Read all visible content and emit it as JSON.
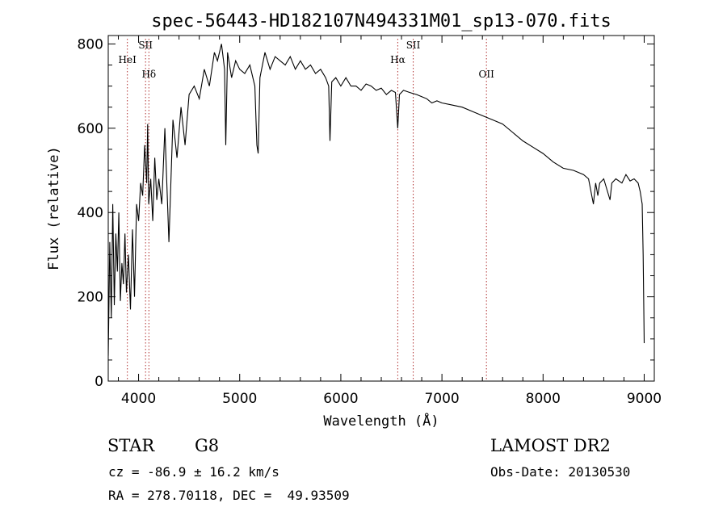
{
  "chart_data": {
    "type": "line",
    "title": "spec-56443-HD182107N494331M01_sp13-070.fits",
    "xlabel": "Wavelength (Å)",
    "ylabel": "Flux (relative)",
    "xlim": [
      3700,
      9100
    ],
    "ylim": [
      0,
      820
    ],
    "x_ticks": [
      4000,
      5000,
      6000,
      7000,
      8000,
      9000
    ],
    "y_ticks": [
      0,
      200,
      400,
      600,
      800
    ],
    "grid": false,
    "series": [
      {
        "x": [
          3700,
          3715,
          3730,
          3745,
          3760,
          3775,
          3790,
          3805,
          3820,
          3835,
          3850,
          3865,
          3880,
          3900,
          3920,
          3940,
          3960,
          3980,
          4000,
          4020,
          4040,
          4060,
          4080,
          4090,
          4100,
          4120,
          4140,
          4160,
          4180,
          4200,
          4230,
          4260,
          4300,
          4340,
          4380,
          4420,
          4460,
          4500,
          4550,
          4600,
          4650,
          4700,
          4750,
          4780,
          4820,
          4850,
          4862,
          4880,
          4920,
          4960,
          5000,
          5050,
          5100,
          5150,
          5170,
          5183,
          5200,
          5250,
          5300,
          5350,
          5400,
          5450,
          5500,
          5550,
          5600,
          5650,
          5700,
          5750,
          5800,
          5850,
          5880,
          5893,
          5910,
          5950,
          6000,
          6050,
          6100,
          6150,
          6200,
          6250,
          6300,
          6350,
          6400,
          6450,
          6500,
          6540,
          6563,
          6580,
          6620,
          6680,
          6750,
          6800,
          6850,
          6900,
          6950,
          7000,
          7100,
          7200,
          7300,
          7400,
          7500,
          7600,
          7700,
          7800,
          7900,
          8000,
          8100,
          8200,
          8300,
          8400,
          8450,
          8498,
          8520,
          8542,
          8560,
          8600,
          8662,
          8680,
          8720,
          8780,
          8820,
          8860,
          8900,
          8940,
          8960,
          8980,
          8990,
          9000
        ],
        "y": [
          60,
          330,
          150,
          420,
          180,
          350,
          260,
          400,
          190,
          280,
          230,
          350,
          210,
          300,
          170,
          360,
          200,
          420,
          380,
          470,
          440,
          560,
          470,
          610,
          420,
          480,
          380,
          530,
          430,
          480,
          420,
          600,
          330,
          620,
          530,
          650,
          560,
          680,
          700,
          670,
          740,
          700,
          780,
          760,
          800,
          740,
          560,
          780,
          720,
          760,
          740,
          730,
          750,
          700,
          560,
          540,
          720,
          780,
          740,
          770,
          760,
          750,
          770,
          740,
          760,
          740,
          750,
          730,
          740,
          720,
          700,
          570,
          710,
          720,
          700,
          720,
          700,
          700,
          690,
          705,
          700,
          690,
          695,
          680,
          690,
          685,
          600,
          680,
          690,
          685,
          680,
          675,
          670,
          660,
          665,
          660,
          655,
          650,
          640,
          630,
          620,
          610,
          590,
          570,
          555,
          540,
          520,
          505,
          500,
          490,
          480,
          420,
          470,
          440,
          470,
          480,
          430,
          470,
          480,
          470,
          490,
          475,
          480,
          470,
          450,
          420,
          300,
          90
        ],
        "linestyle": "solid",
        "color": "#000000"
      }
    ],
    "annotations": [
      {
        "label": "HeI",
        "x": 3889,
        "label_row": 1
      },
      {
        "label": "SII",
        "x": 4069,
        "label_row": 0
      },
      {
        "label": "Hδ",
        "x": 4102,
        "label_row": 2
      },
      {
        "label": "Hα",
        "x": 6563,
        "label_row": 1
      },
      {
        "label": "SII",
        "x": 6716,
        "label_row": 0
      },
      {
        "label": "OII",
        "x": 7440,
        "label_row": 2
      }
    ],
    "marker_color": "#b03030"
  },
  "info": {
    "class_label": "STAR",
    "subclass": "G8",
    "cz": "cz = -86.9 ± 16.2 km/s",
    "coords": "RA = 278.70118, DEC =  49.93509",
    "survey": "LAMOST DR2",
    "obs_date": "Obs-Date: 20130530"
  }
}
